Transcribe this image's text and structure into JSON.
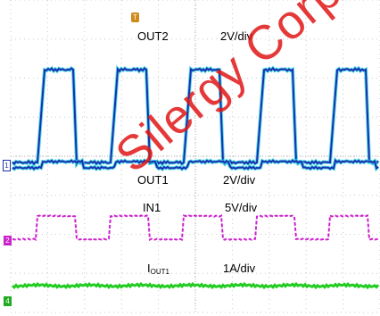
{
  "chart_data": {
    "type": "line",
    "title": "",
    "grid": true,
    "x_divisions": 10,
    "y_divisions": 8,
    "series": [
      {
        "name": "OUT2",
        "scale": "2V/div",
        "color": "#1a2fb0",
        "highlight_color": "#35d4e0"
      },
      {
        "name": "OUT1",
        "scale": "2V/div",
        "color": "#1a2fb0",
        "highlight_color": "#35d4e0"
      },
      {
        "name": "IN1",
        "scale": "5V/div",
        "color": "#cc22cc"
      },
      {
        "name": "I_OUT1",
        "scale": "1A/div",
        "color": "#22cc22"
      }
    ]
  },
  "labels": {
    "out2": "OUT2",
    "out2_scale": "2V/div",
    "out1": "OUT1",
    "out1_scale": "2V/div",
    "in1": "IN1",
    "in1_scale": "5V/div",
    "iout_main": "I",
    "iout_sub": "OUT1",
    "iout_scale": "1A/div"
  },
  "markers": {
    "trigger": "T",
    "ch1": "1",
    "ch2": "2",
    "ch4": "4"
  },
  "watermark": "Silergy Corp"
}
